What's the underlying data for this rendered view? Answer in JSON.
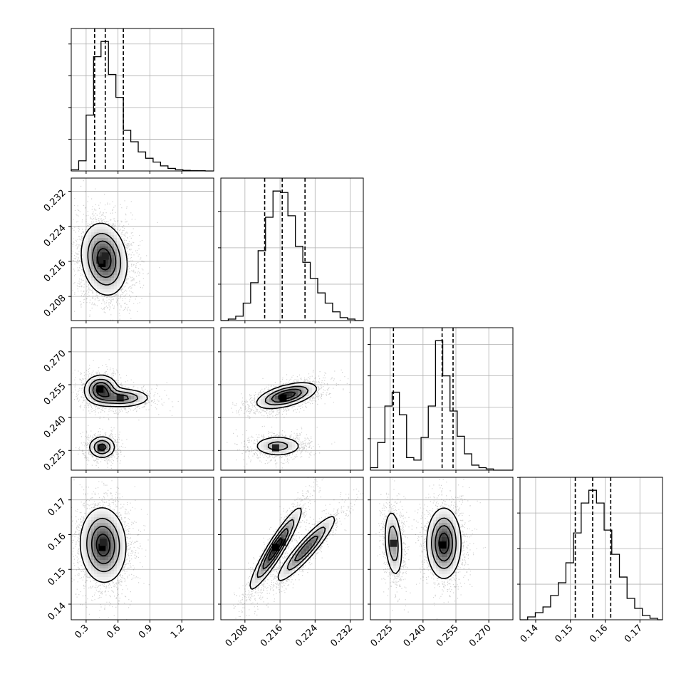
{
  "chart_data": {
    "type": "corner",
    "title": "",
    "grid": true,
    "parameters": [
      {
        "name": "",
        "range": [
          0.16,
          1.5
        ],
        "ticks": [
          "0.3",
          "0.6",
          "0.9",
          "1.2"
        ]
      },
      {
        "name": "",
        "range": [
          0.2025,
          0.235
        ],
        "ticks": [
          "0.208",
          "0.216",
          "0.224",
          "0.232"
        ]
      },
      {
        "name": "",
        "range": [
          0.216,
          0.281
        ],
        "ticks": [
          "0.225",
          "0.240",
          "0.255",
          "0.270"
        ]
      },
      {
        "name": "",
        "range": [
          0.1355,
          0.1765
        ],
        "ticks": [
          "0.14",
          "0.15",
          "0.16",
          "0.17"
        ]
      }
    ],
    "quantiles": [
      [
        0.38,
        0.48,
        0.65
      ],
      [
        0.2125,
        0.2165,
        0.2217
      ],
      [
        0.2265,
        0.2487,
        0.2537
      ],
      [
        0.1514,
        0.1564,
        0.1616
      ]
    ],
    "histograms": [
      {
        "edges": [
          0.16,
          0.23,
          0.3,
          0.37,
          0.44,
          0.51,
          0.58,
          0.65,
          0.72,
          0.79,
          0.86,
          0.93,
          1.0,
          1.07,
          1.14,
          1.21,
          1.28,
          1.35,
          1.42,
          1.5
        ],
        "counts": [
          1,
          8,
          44,
          90,
          102,
          76,
          58,
          32,
          23,
          15,
          10,
          7,
          4,
          2,
          1,
          0.5,
          0.3,
          0.2,
          0
        ]
      },
      {
        "edges": [
          0.2025,
          0.2042,
          0.2059,
          0.2076,
          0.2093,
          0.211,
          0.2127,
          0.2144,
          0.2161,
          0.2178,
          0.2195,
          0.2212,
          0.2229,
          0.2246,
          0.2263,
          0.228,
          0.2297,
          0.2314,
          0.2331,
          0.235
        ],
        "counts": [
          0,
          1,
          3,
          12,
          26,
          48,
          71,
          89,
          88,
          72,
          51,
          40,
          29,
          19,
          12,
          6,
          2,
          1,
          0
        ]
      },
      {
        "edges": [
          0.216,
          0.2193,
          0.2226,
          0.2259,
          0.2292,
          0.2325,
          0.2358,
          0.2391,
          0.2424,
          0.2457,
          0.249,
          0.2523,
          0.2556,
          0.2589,
          0.2622,
          0.2655,
          0.2688,
          0.2721,
          0.2754,
          0.281
        ],
        "counts": [
          2,
          22,
          51,
          62,
          44,
          10,
          8,
          26,
          51,
          103,
          75,
          47,
          27,
          13,
          4,
          2,
          1,
          0,
          0
        ]
      },
      {
        "edges": [
          0.1355,
          0.1377,
          0.1399,
          0.1421,
          0.1443,
          0.1465,
          0.1487,
          0.1509,
          0.1531,
          0.1553,
          0.1575,
          0.1597,
          0.1619,
          0.1641,
          0.1663,
          0.1685,
          0.1707,
          0.1729,
          0.1751,
          0.1765
        ],
        "counts": [
          0,
          2,
          5,
          9,
          17,
          26,
          40,
          61,
          82,
          91,
          82,
          63,
          46,
          30,
          15,
          8,
          3,
          1,
          0
        ]
      }
    ],
    "pairs": [
      {
        "x": 0,
        "y": 1,
        "modes": [
          {
            "mx": 0.47,
            "my": 0.2165,
            "sx": 0.11,
            "sy": 0.0042,
            "rho": -0.15,
            "w": 1.0
          }
        ],
        "hot": [
          [
            0.45,
            0.2155
          ],
          [
            0.43,
            0.2163
          ],
          [
            0.48,
            0.2172
          ]
        ]
      },
      {
        "x": 0,
        "y": 2,
        "modes": [
          {
            "mx": 0.44,
            "my": 0.253,
            "sx": 0.08,
            "sy": 0.0033,
            "rho": 0.0,
            "w": 0.42
          },
          {
            "mx": 0.63,
            "my": 0.249,
            "sx": 0.14,
            "sy": 0.0022,
            "rho": 0.0,
            "w": 0.32
          },
          {
            "mx": 0.45,
            "my": 0.2265,
            "sx": 0.065,
            "sy": 0.0026,
            "rho": 0.0,
            "w": 0.33
          }
        ],
        "hot": [
          [
            0.43,
            0.253
          ],
          [
            0.44,
            0.2262
          ],
          [
            0.62,
            0.249
          ]
        ]
      },
      {
        "x": 1,
        "y": 2,
        "modes": [
          {
            "mx": 0.2175,
            "my": 0.25,
            "sx": 0.0035,
            "sy": 0.003,
            "rho": 0.55,
            "w": 0.65
          },
          {
            "mx": 0.2155,
            "my": 0.227,
            "sx": 0.003,
            "sy": 0.0025,
            "rho": 0.0,
            "w": 0.33
          }
        ],
        "hot": [
          [
            0.2167,
            0.249
          ],
          [
            0.215,
            0.2262
          ]
        ]
      },
      {
        "x": 0,
        "y": 3,
        "modes": [
          {
            "mx": 0.46,
            "my": 0.157,
            "sx": 0.11,
            "sy": 0.0055,
            "rho": -0.05,
            "w": 1.0
          }
        ],
        "hot": [
          [
            0.45,
            0.1563
          ],
          [
            0.46,
            0.1578
          ]
        ]
      },
      {
        "x": 1,
        "y": 3,
        "modes": [
          {
            "mx": 0.215,
            "my": 0.156,
            "sx": 0.003,
            "sy": 0.006,
            "rho": 0.93,
            "w": 0.55
          },
          {
            "mx": 0.222,
            "my": 0.156,
            "sx": 0.0035,
            "sy": 0.005,
            "rho": 0.92,
            "w": 0.45
          }
        ],
        "hot": [
          [
            0.215,
            0.1563
          ],
          [
            0.2165,
            0.1578
          ]
        ]
      },
      {
        "x": 2,
        "y": 3,
        "modes": [
          {
            "mx": 0.2265,
            "my": 0.1575,
            "sx": 0.0022,
            "sy": 0.0052,
            "rho": -0.25,
            "w": 0.38
          },
          {
            "mx": 0.2495,
            "my": 0.1575,
            "sx": 0.004,
            "sy": 0.0052,
            "rho": 0.0,
            "w": 0.62
          }
        ],
        "hot": [
          [
            0.249,
            0.157
          ],
          [
            0.2265,
            0.1575
          ]
        ]
      }
    ]
  }
}
